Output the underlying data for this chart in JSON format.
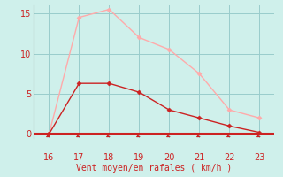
{
  "x": [
    16,
    17,
    18,
    19,
    20,
    21,
    22,
    23
  ],
  "y_rafales": [
    0,
    14.5,
    15.5,
    12.0,
    10.5,
    7.5,
    3.0,
    2.0
  ],
  "y_moyen": [
    0,
    6.3,
    6.3,
    5.2,
    3.0,
    2.0,
    1.0,
    0.2
  ],
  "color_rafales": "#ffaaaa",
  "color_moyen": "#cc2222",
  "bg_color": "#cff0eb",
  "grid_color": "#99cccc",
  "xlabel": "Vent moyen/en rafales ( km/h )",
  "xlabel_color": "#cc2222",
  "tick_color": "#cc2222",
  "axis_line_color": "#888888",
  "red_line_color": "#cc2222",
  "ylim": [
    -0.5,
    16
  ],
  "xlim": [
    15.5,
    23.5
  ],
  "yticks": [
    0,
    5,
    10,
    15
  ],
  "xticks": [
    16,
    17,
    18,
    19,
    20,
    21,
    22,
    23
  ]
}
